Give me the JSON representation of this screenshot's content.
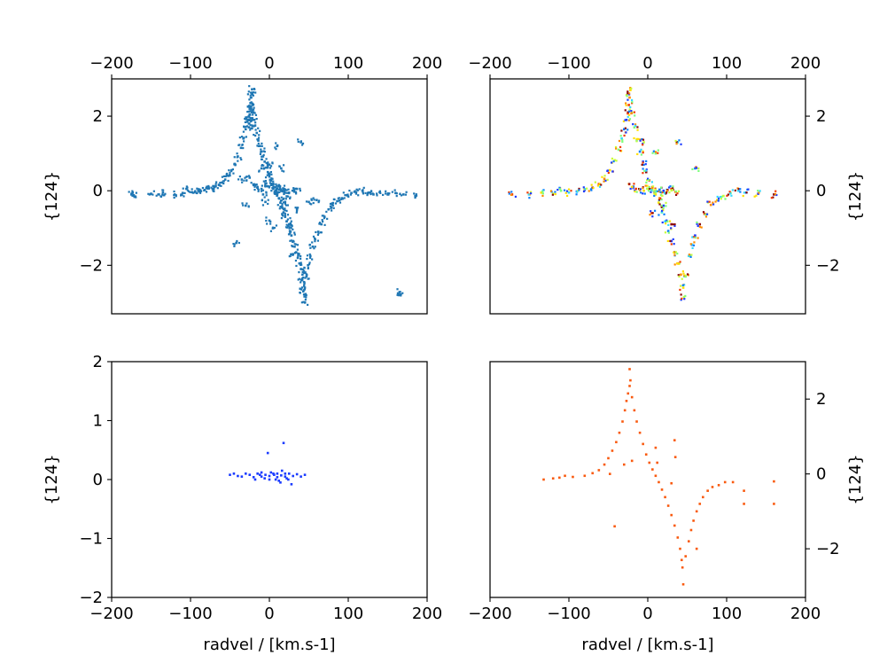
{
  "colors": {
    "panel1": "#1f77b4",
    "panel3": "#1a3bff",
    "panel4": "#f95a0f",
    "panel2_palette": [
      "#f23c00",
      "#ff8c00",
      "#ffe000",
      "#c8ff3a",
      "#7dff7a",
      "#36d8ff",
      "#0a7dff",
      "#1f3cff",
      "#8b0a0a"
    ]
  },
  "chart_data": [
    {
      "type": "scatter",
      "panel": "top-left",
      "xlim": [
        -200,
        200
      ],
      "ylim": [
        -3.3,
        3.0
      ],
      "xticks": [
        "−200",
        "−100",
        "0",
        "100",
        "200"
      ],
      "yticks": [
        "−2",
        "0",
        "2"
      ],
      "xtick_position": "top",
      "ytick_position": "left",
      "xlabel": "",
      "ylabel": "{124}",
      "color_key": "panel1",
      "points": [
        [
          -175,
          -0.1
        ],
        [
          -172,
          -0.12
        ],
        [
          -150,
          -0.08
        ],
        [
          -140,
          -0.1
        ],
        [
          -135,
          -0.05
        ],
        [
          -120,
          -0.1
        ],
        [
          -110,
          -0.06
        ],
        [
          -105,
          0.05
        ],
        [
          -98,
          -0.04
        ],
        [
          -92,
          -0.06
        ],
        [
          -88,
          -0.02
        ],
        [
          -82,
          0.02
        ],
        [
          -78,
          0.06
        ],
        [
          -72,
          0.05
        ],
        [
          -68,
          0.12
        ],
        [
          -64,
          0.16
        ],
        [
          -60,
          0.22
        ],
        [
          -56,
          0.3
        ],
        [
          -52,
          0.4
        ],
        [
          -48,
          0.55
        ],
        [
          -44,
          0.72
        ],
        [
          -40,
          0.92
        ],
        [
          -36,
          1.15
        ],
        [
          -33,
          1.4
        ],
        [
          -30,
          1.65
        ],
        [
          -28,
          1.85
        ],
        [
          -26,
          2.0
        ],
        [
          -25,
          2.2
        ],
        [
          -24,
          2.35
        ],
        [
          -23,
          2.5
        ],
        [
          -22,
          2.6
        ],
        [
          -22,
          2.72
        ],
        [
          -26,
          1.7
        ],
        [
          -27,
          1.9
        ],
        [
          -25,
          2.05
        ],
        [
          -23,
          2.2
        ],
        [
          -21,
          2.3
        ],
        [
          -20,
          2.1
        ],
        [
          -19,
          1.9
        ],
        [
          -18,
          1.75
        ],
        [
          -16,
          1.55
        ],
        [
          -14,
          1.35
        ],
        [
          -12,
          1.2
        ],
        [
          -10,
          1.05
        ],
        [
          -8,
          0.92
        ],
        [
          -6,
          0.78
        ],
        [
          -4,
          0.62
        ],
        [
          -2,
          0.5
        ],
        [
          0,
          0.38
        ],
        [
          2,
          0.28
        ],
        [
          4,
          0.18
        ],
        [
          6,
          0.1
        ],
        [
          8,
          0.0
        ],
        [
          10,
          -0.1
        ],
        [
          12,
          -0.2
        ],
        [
          14,
          -0.32
        ],
        [
          16,
          -0.45
        ],
        [
          18,
          -0.58
        ],
        [
          20,
          -0.7
        ],
        [
          22,
          -0.82
        ],
        [
          24,
          -0.95
        ],
        [
          26,
          -1.08
        ],
        [
          28,
          -1.2
        ],
        [
          30,
          -1.35
        ],
        [
          32,
          -1.5
        ],
        [
          34,
          -1.65
        ],
        [
          36,
          -1.8
        ],
        [
          38,
          -1.95
        ],
        [
          40,
          -2.1
        ],
        [
          42,
          -2.25
        ],
        [
          44,
          -2.45
        ],
        [
          45,
          -2.6
        ],
        [
          46,
          -2.8
        ],
        [
          45,
          -3.0
        ],
        [
          43,
          -2.7
        ],
        [
          41,
          -2.4
        ],
        [
          47,
          -2.3
        ],
        [
          49,
          -2.0
        ],
        [
          52,
          -1.75
        ],
        [
          55,
          -1.5
        ],
        [
          58,
          -1.3
        ],
        [
          62,
          -1.1
        ],
        [
          66,
          -0.9
        ],
        [
          70,
          -0.7
        ],
        [
          75,
          -0.5
        ],
        [
          80,
          -0.38
        ],
        [
          86,
          -0.28
        ],
        [
          92,
          -0.2
        ],
        [
          98,
          -0.12
        ],
        [
          104,
          -0.06
        ],
        [
          110,
          -0.04
        ],
        [
          118,
          0.0
        ],
        [
          125,
          -0.06
        ],
        [
          132,
          -0.1
        ],
        [
          140,
          -0.04
        ],
        [
          150,
          -0.1
        ],
        [
          160,
          -0.06
        ],
        [
          170,
          -0.1
        ],
        [
          185,
          -0.14
        ],
        [
          165,
          -2.72
        ],
        [
          164,
          -2.8
        ],
        [
          -42,
          -1.4
        ],
        [
          -30,
          -0.4
        ],
        [
          -20,
          0.15
        ],
        [
          -15,
          0.1
        ],
        [
          -10,
          0.05
        ],
        [
          -5,
          0.2
        ],
        [
          5,
          0.05
        ],
        [
          10,
          0.05
        ],
        [
          15,
          0.0
        ],
        [
          20,
          0.02
        ],
        [
          25,
          -0.05
        ],
        [
          30,
          0.0
        ],
        [
          35,
          0.05
        ],
        [
          -35,
          0.3
        ],
        [
          -25,
          0.35
        ],
        [
          0,
          0.7
        ],
        [
          10,
          1.2
        ],
        [
          40,
          1.3
        ],
        [
          20,
          -0.3
        ],
        [
          25,
          -0.9
        ],
        [
          35,
          -0.5
        ],
        [
          50,
          -0.3
        ],
        [
          60,
          -0.25
        ],
        [
          -5,
          -0.3
        ],
        [
          0,
          -0.8
        ],
        [
          5,
          -1.0
        ],
        [
          30,
          -1.7
        ],
        [
          15,
          0.6
        ],
        [
          -10,
          0.6
        ],
        [
          -8,
          -0.1
        ],
        [
          -2,
          0.12
        ],
        [
          12,
          0.15
        ],
        [
          18,
          0.05
        ],
        [
          22,
          -0.15
        ]
      ],
      "fill_spread": 1.0
    },
    {
      "type": "scatter",
      "panel": "top-right",
      "xlim": [
        -200,
        200
      ],
      "ylim": [
        -3.3,
        3.0
      ],
      "xticks": [
        "−200",
        "−100",
        "0",
        "100",
        "200"
      ],
      "yticks": [
        "−2",
        "0",
        "2"
      ],
      "xtick_position": "top",
      "ytick_position": "right",
      "xlabel": "",
      "ylabel": "{124}",
      "color_key": "panel2_palette",
      "points": [
        [
          -172,
          -0.1
        ],
        [
          -150,
          -0.1
        ],
        [
          -135,
          -0.05
        ],
        [
          -120,
          -0.08
        ],
        [
          -110,
          0.0
        ],
        [
          -100,
          -0.05
        ],
        [
          -90,
          -0.02
        ],
        [
          -80,
          0.02
        ],
        [
          -70,
          0.08
        ],
        [
          -62,
          0.18
        ],
        [
          -55,
          0.32
        ],
        [
          -48,
          0.55
        ],
        [
          -42,
          0.82
        ],
        [
          -37,
          1.1
        ],
        [
          -33,
          1.4
        ],
        [
          -30,
          1.65
        ],
        [
          -27,
          1.9
        ],
        [
          -25,
          2.1
        ],
        [
          -24,
          2.3
        ],
        [
          -23,
          2.5
        ],
        [
          -22,
          2.7
        ],
        [
          -20,
          2.1
        ],
        [
          -17,
          1.7
        ],
        [
          -14,
          1.35
        ],
        [
          -10,
          1.05
        ],
        [
          -6,
          0.78
        ],
        [
          -2,
          0.5
        ],
        [
          2,
          0.28
        ],
        [
          6,
          0.1
        ],
        [
          10,
          -0.1
        ],
        [
          14,
          -0.32
        ],
        [
          18,
          -0.58
        ],
        [
          22,
          -0.82
        ],
        [
          26,
          -1.08
        ],
        [
          30,
          -1.35
        ],
        [
          34,
          -1.65
        ],
        [
          38,
          -1.95
        ],
        [
          42,
          -2.25
        ],
        [
          45,
          -2.6
        ],
        [
          46,
          -2.85
        ],
        [
          48,
          -2.3
        ],
        [
          52,
          -1.75
        ],
        [
          56,
          -1.45
        ],
        [
          60,
          -1.2
        ],
        [
          66,
          -0.9
        ],
        [
          72,
          -0.62
        ],
        [
          80,
          -0.38
        ],
        [
          88,
          -0.25
        ],
        [
          96,
          -0.14
        ],
        [
          105,
          -0.06
        ],
        [
          115,
          0.0
        ],
        [
          125,
          -0.05
        ],
        [
          140,
          -0.08
        ],
        [
          160,
          -0.1
        ],
        [
          -15,
          0.05
        ],
        [
          -10,
          0.02
        ],
        [
          -5,
          0.0
        ],
        [
          0,
          0.05
        ],
        [
          5,
          0.02
        ],
        [
          10,
          0.0
        ],
        [
          15,
          0.03
        ],
        [
          20,
          0.0
        ],
        [
          25,
          0.02
        ],
        [
          30,
          0.05
        ],
        [
          35,
          -0.03
        ],
        [
          -20,
          0.1
        ],
        [
          -5,
          1.3
        ],
        [
          10,
          1.0
        ],
        [
          38,
          1.3
        ],
        [
          60,
          0.6
        ],
        [
          20,
          -0.4
        ],
        [
          30,
          -0.9
        ],
        [
          5,
          -0.6
        ],
        [
          15,
          -0.2
        ]
      ],
      "fill_spread": 1.0
    },
    {
      "type": "scatter",
      "panel": "bottom-left",
      "xlim": [
        -200,
        200
      ],
      "ylim": [
        -2,
        2
      ],
      "xticks": [
        "−200",
        "−100",
        "0",
        "100",
        "200"
      ],
      "yticks": [
        "−2",
        "−1",
        "0",
        "1",
        "2"
      ],
      "xtick_position": "bottom",
      "ytick_position": "left",
      "xlabel": "radvel / [km.s-1]",
      "ylabel": "{124}",
      "color_key": "panel3",
      "points": [
        [
          -50,
          0.08
        ],
        [
          -45,
          0.1
        ],
        [
          -40,
          0.06
        ],
        [
          -35,
          0.05
        ],
        [
          -30,
          0.1
        ],
        [
          -25,
          0.08
        ],
        [
          -20,
          0.04
        ],
        [
          -15,
          0.1
        ],
        [
          -10,
          0.05
        ],
        [
          -5,
          0.08
        ],
        [
          0,
          0.06
        ],
        [
          5,
          0.1
        ],
        [
          10,
          0.04
        ],
        [
          15,
          0.07
        ],
        [
          20,
          0.05
        ],
        [
          25,
          0.1
        ],
        [
          30,
          0.06
        ],
        [
          35,
          0.09
        ],
        [
          40,
          0.05
        ],
        [
          45,
          0.08
        ],
        [
          -2,
          0.45
        ],
        [
          18,
          0.62
        ],
        [
          -10,
          0.12
        ],
        [
          8,
          0.0
        ],
        [
          12,
          -0.02
        ],
        [
          -6,
          0.02
        ],
        [
          14,
          -0.05
        ],
        [
          24,
          0.0
        ],
        [
          28,
          -0.08
        ],
        [
          2,
          0.12
        ],
        [
          16,
          0.15
        ],
        [
          -18,
          0.0
        ],
        [
          22,
          0.02
        ],
        [
          10,
          0.1
        ],
        [
          6,
          0.08
        ],
        [
          0,
          0.0
        ],
        [
          -12,
          0.08
        ],
        [
          20,
          0.1
        ]
      ],
      "fill_spread": 0.0
    },
    {
      "type": "scatter",
      "panel": "bottom-right",
      "xlim": [
        -200,
        200
      ],
      "ylim": [
        -3.3,
        3.0
      ],
      "xticks": [
        "−200",
        "−100",
        "0",
        "100",
        "200"
      ],
      "yticks": [
        "−2",
        "0",
        "2"
      ],
      "xtick_position": "bottom",
      "ytick_position": "right",
      "xlabel": "radvel / [km.s-1]",
      "ylabel": "{124}",
      "color_key": "panel4",
      "points": [
        [
          -132,
          -0.15
        ],
        [
          -120,
          -0.12
        ],
        [
          -112,
          -0.1
        ],
        [
          -105,
          -0.05
        ],
        [
          -95,
          -0.08
        ],
        [
          -80,
          -0.05
        ],
        [
          -70,
          0.02
        ],
        [
          -62,
          0.1
        ],
        [
          -55,
          0.25
        ],
        [
          -50,
          0.42
        ],
        [
          -45,
          0.62
        ],
        [
          -40,
          0.85
        ],
        [
          -36,
          1.1
        ],
        [
          -32,
          1.4
        ],
        [
          -29,
          1.7
        ],
        [
          -27,
          1.95
        ],
        [
          -25,
          2.15
        ],
        [
          -23,
          2.35
        ],
        [
          -22,
          2.5
        ],
        [
          -23,
          2.8
        ],
        [
          -20,
          2.05
        ],
        [
          -17,
          1.7
        ],
        [
          -14,
          1.4
        ],
        [
          -10,
          1.1
        ],
        [
          -6,
          0.8
        ],
        [
          -2,
          0.52
        ],
        [
          2,
          0.3
        ],
        [
          6,
          0.12
        ],
        [
          10,
          -0.05
        ],
        [
          14,
          -0.22
        ],
        [
          18,
          -0.42
        ],
        [
          22,
          -0.62
        ],
        [
          26,
          -0.85
        ],
        [
          30,
          -1.1
        ],
        [
          34,
          -1.38
        ],
        [
          38,
          -1.7
        ],
        [
          41,
          -2.0
        ],
        [
          43,
          -2.3
        ],
        [
          44,
          -2.5
        ],
        [
          45,
          -2.95
        ],
        [
          48,
          -2.2
        ],
        [
          52,
          -1.8
        ],
        [
          55,
          -1.5
        ],
        [
          58,
          -1.25
        ],
        [
          62,
          -1.0
        ],
        [
          66,
          -0.8
        ],
        [
          70,
          -0.62
        ],
        [
          76,
          -0.45
        ],
        [
          82,
          -0.35
        ],
        [
          90,
          -0.3
        ],
        [
          98,
          -0.22
        ],
        [
          108,
          -0.22
        ],
        [
          122,
          -0.45
        ],
        [
          122,
          -0.8
        ],
        [
          160,
          -0.2
        ],
        [
          160,
          -0.8
        ],
        [
          -42,
          -1.4
        ],
        [
          -20,
          0.35
        ],
        [
          10,
          0.7
        ],
        [
          12,
          0.3
        ],
        [
          34,
          0.9
        ],
        [
          35,
          0.45
        ],
        [
          30,
          -0.25
        ],
        [
          62,
          -2.0
        ],
        [
          -48,
          0.0
        ],
        [
          -30,
          0.25
        ]
      ],
      "fill_spread": 0.0
    }
  ]
}
